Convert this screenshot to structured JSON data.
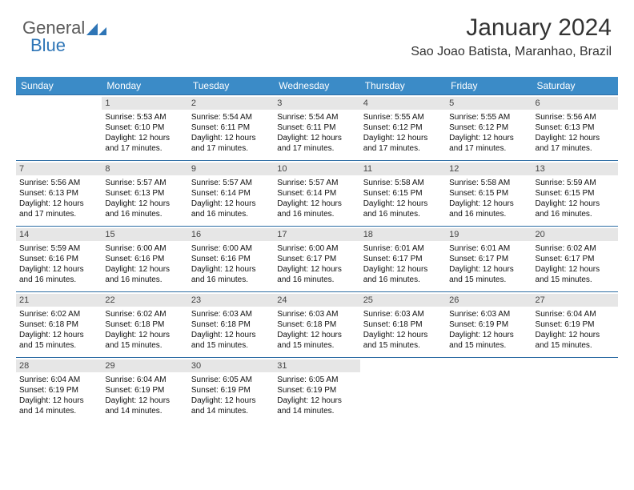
{
  "logo": {
    "text1": "General",
    "text2": "Blue"
  },
  "colors": {
    "header_bg": "#3b8bc7",
    "daynum_bg": "#e6e6e6",
    "row_border": "#2e6da4",
    "logo_gray": "#5a5a5a",
    "logo_blue": "#2e75b6"
  },
  "header": {
    "month_title": "January 2024",
    "location": "Sao Joao Batista, Maranhao, Brazil"
  },
  "day_headers": [
    "Sunday",
    "Monday",
    "Tuesday",
    "Wednesday",
    "Thursday",
    "Friday",
    "Saturday"
  ],
  "weeks": [
    [
      null,
      {
        "n": "1",
        "sr": "Sunrise: 5:53 AM",
        "ss": "Sunset: 6:10 PM",
        "d1": "Daylight: 12 hours",
        "d2": "and 17 minutes."
      },
      {
        "n": "2",
        "sr": "Sunrise: 5:54 AM",
        "ss": "Sunset: 6:11 PM",
        "d1": "Daylight: 12 hours",
        "d2": "and 17 minutes."
      },
      {
        "n": "3",
        "sr": "Sunrise: 5:54 AM",
        "ss": "Sunset: 6:11 PM",
        "d1": "Daylight: 12 hours",
        "d2": "and 17 minutes."
      },
      {
        "n": "4",
        "sr": "Sunrise: 5:55 AM",
        "ss": "Sunset: 6:12 PM",
        "d1": "Daylight: 12 hours",
        "d2": "and 17 minutes."
      },
      {
        "n": "5",
        "sr": "Sunrise: 5:55 AM",
        "ss": "Sunset: 6:12 PM",
        "d1": "Daylight: 12 hours",
        "d2": "and 17 minutes."
      },
      {
        "n": "6",
        "sr": "Sunrise: 5:56 AM",
        "ss": "Sunset: 6:13 PM",
        "d1": "Daylight: 12 hours",
        "d2": "and 17 minutes."
      }
    ],
    [
      {
        "n": "7",
        "sr": "Sunrise: 5:56 AM",
        "ss": "Sunset: 6:13 PM",
        "d1": "Daylight: 12 hours",
        "d2": "and 17 minutes."
      },
      {
        "n": "8",
        "sr": "Sunrise: 5:57 AM",
        "ss": "Sunset: 6:13 PM",
        "d1": "Daylight: 12 hours",
        "d2": "and 16 minutes."
      },
      {
        "n": "9",
        "sr": "Sunrise: 5:57 AM",
        "ss": "Sunset: 6:14 PM",
        "d1": "Daylight: 12 hours",
        "d2": "and 16 minutes."
      },
      {
        "n": "10",
        "sr": "Sunrise: 5:57 AM",
        "ss": "Sunset: 6:14 PM",
        "d1": "Daylight: 12 hours",
        "d2": "and 16 minutes."
      },
      {
        "n": "11",
        "sr": "Sunrise: 5:58 AM",
        "ss": "Sunset: 6:15 PM",
        "d1": "Daylight: 12 hours",
        "d2": "and 16 minutes."
      },
      {
        "n": "12",
        "sr": "Sunrise: 5:58 AM",
        "ss": "Sunset: 6:15 PM",
        "d1": "Daylight: 12 hours",
        "d2": "and 16 minutes."
      },
      {
        "n": "13",
        "sr": "Sunrise: 5:59 AM",
        "ss": "Sunset: 6:15 PM",
        "d1": "Daylight: 12 hours",
        "d2": "and 16 minutes."
      }
    ],
    [
      {
        "n": "14",
        "sr": "Sunrise: 5:59 AM",
        "ss": "Sunset: 6:16 PM",
        "d1": "Daylight: 12 hours",
        "d2": "and 16 minutes."
      },
      {
        "n": "15",
        "sr": "Sunrise: 6:00 AM",
        "ss": "Sunset: 6:16 PM",
        "d1": "Daylight: 12 hours",
        "d2": "and 16 minutes."
      },
      {
        "n": "16",
        "sr": "Sunrise: 6:00 AM",
        "ss": "Sunset: 6:16 PM",
        "d1": "Daylight: 12 hours",
        "d2": "and 16 minutes."
      },
      {
        "n": "17",
        "sr": "Sunrise: 6:00 AM",
        "ss": "Sunset: 6:17 PM",
        "d1": "Daylight: 12 hours",
        "d2": "and 16 minutes."
      },
      {
        "n": "18",
        "sr": "Sunrise: 6:01 AM",
        "ss": "Sunset: 6:17 PM",
        "d1": "Daylight: 12 hours",
        "d2": "and 16 minutes."
      },
      {
        "n": "19",
        "sr": "Sunrise: 6:01 AM",
        "ss": "Sunset: 6:17 PM",
        "d1": "Daylight: 12 hours",
        "d2": "and 15 minutes."
      },
      {
        "n": "20",
        "sr": "Sunrise: 6:02 AM",
        "ss": "Sunset: 6:17 PM",
        "d1": "Daylight: 12 hours",
        "d2": "and 15 minutes."
      }
    ],
    [
      {
        "n": "21",
        "sr": "Sunrise: 6:02 AM",
        "ss": "Sunset: 6:18 PM",
        "d1": "Daylight: 12 hours",
        "d2": "and 15 minutes."
      },
      {
        "n": "22",
        "sr": "Sunrise: 6:02 AM",
        "ss": "Sunset: 6:18 PM",
        "d1": "Daylight: 12 hours",
        "d2": "and 15 minutes."
      },
      {
        "n": "23",
        "sr": "Sunrise: 6:03 AM",
        "ss": "Sunset: 6:18 PM",
        "d1": "Daylight: 12 hours",
        "d2": "and 15 minutes."
      },
      {
        "n": "24",
        "sr": "Sunrise: 6:03 AM",
        "ss": "Sunset: 6:18 PM",
        "d1": "Daylight: 12 hours",
        "d2": "and 15 minutes."
      },
      {
        "n": "25",
        "sr": "Sunrise: 6:03 AM",
        "ss": "Sunset: 6:18 PM",
        "d1": "Daylight: 12 hours",
        "d2": "and 15 minutes."
      },
      {
        "n": "26",
        "sr": "Sunrise: 6:03 AM",
        "ss": "Sunset: 6:19 PM",
        "d1": "Daylight: 12 hours",
        "d2": "and 15 minutes."
      },
      {
        "n": "27",
        "sr": "Sunrise: 6:04 AM",
        "ss": "Sunset: 6:19 PM",
        "d1": "Daylight: 12 hours",
        "d2": "and 15 minutes."
      }
    ],
    [
      {
        "n": "28",
        "sr": "Sunrise: 6:04 AM",
        "ss": "Sunset: 6:19 PM",
        "d1": "Daylight: 12 hours",
        "d2": "and 14 minutes."
      },
      {
        "n": "29",
        "sr": "Sunrise: 6:04 AM",
        "ss": "Sunset: 6:19 PM",
        "d1": "Daylight: 12 hours",
        "d2": "and 14 minutes."
      },
      {
        "n": "30",
        "sr": "Sunrise: 6:05 AM",
        "ss": "Sunset: 6:19 PM",
        "d1": "Daylight: 12 hours",
        "d2": "and 14 minutes."
      },
      {
        "n": "31",
        "sr": "Sunrise: 6:05 AM",
        "ss": "Sunset: 6:19 PM",
        "d1": "Daylight: 12 hours",
        "d2": "and 14 minutes."
      },
      null,
      null,
      null
    ]
  ]
}
